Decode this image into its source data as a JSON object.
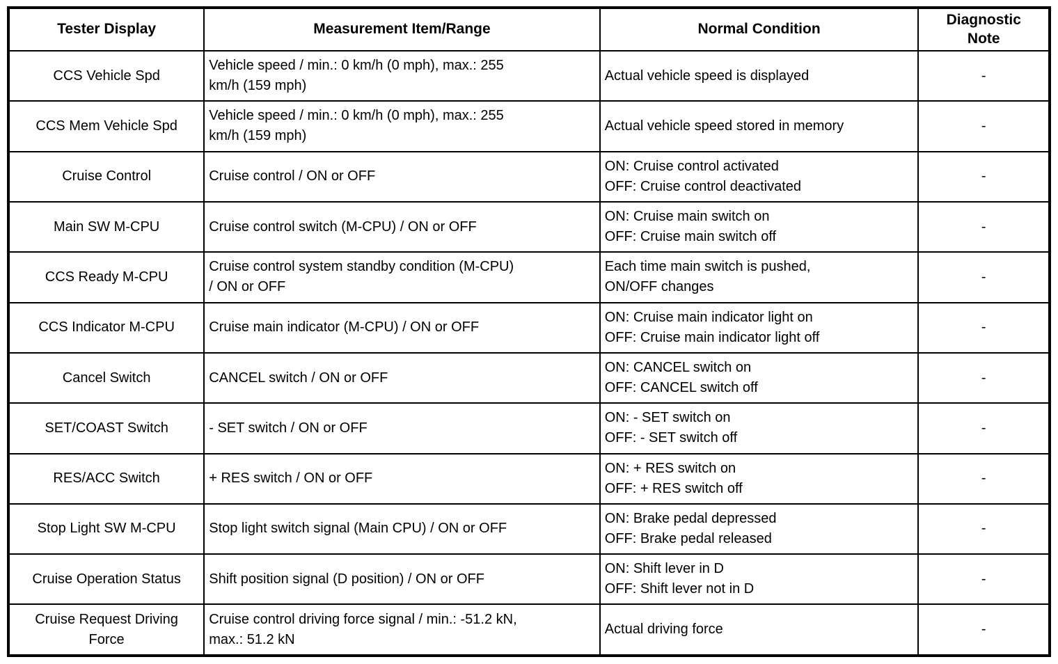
{
  "table": {
    "headers": [
      "Tester Display",
      "Measurement Item/Range",
      "Normal Condition",
      "Diagnostic\nNote"
    ],
    "rows": [
      {
        "tester": "CCS Vehicle Spd",
        "measurement": "Vehicle speed / min.: 0 km/h (0 mph), max.: 255\nkm/h (159 mph)",
        "normal": "Actual vehicle speed is displayed",
        "note": "-"
      },
      {
        "tester": "CCS Mem Vehicle Spd",
        "measurement": "Vehicle speed / min.: 0 km/h (0 mph), max.: 255\nkm/h (159 mph)",
        "normal": "Actual vehicle speed stored in memory",
        "note": "-"
      },
      {
        "tester": "Cruise Control",
        "measurement": "Cruise control / ON or OFF",
        "normal": "ON: Cruise control activated\nOFF: Cruise control deactivated",
        "note": "-"
      },
      {
        "tester": "Main SW M-CPU",
        "measurement": "Cruise control switch (M-CPU) / ON or OFF",
        "normal": "ON: Cruise main switch on\nOFF: Cruise main switch off",
        "note": "-"
      },
      {
        "tester": "CCS Ready M-CPU",
        "measurement": "Cruise control system standby condition (M-CPU)\n/ ON or OFF",
        "normal": "Each time main switch is pushed,\nON/OFF changes",
        "note": "-"
      },
      {
        "tester": "CCS Indicator M-CPU",
        "measurement": "Cruise main indicator (M-CPU) / ON or OFF",
        "normal": "ON: Cruise main indicator light on\nOFF: Cruise main indicator light off",
        "note": "-"
      },
      {
        "tester": "Cancel Switch",
        "measurement": "CANCEL switch / ON or OFF",
        "normal": "ON: CANCEL switch on\nOFF: CANCEL switch off",
        "note": "-"
      },
      {
        "tester": "SET/COAST Switch",
        "measurement": "- SET switch / ON or OFF",
        "normal": "ON: - SET switch on\nOFF: - SET switch off",
        "note": "-"
      },
      {
        "tester": "RES/ACC Switch",
        "measurement": "+ RES switch / ON or OFF",
        "normal": "ON: + RES switch on\nOFF: + RES switch off",
        "note": "-"
      },
      {
        "tester": "Stop Light SW M-CPU",
        "measurement": "Stop light switch signal (Main CPU) / ON or OFF",
        "normal": "ON: Brake pedal depressed\nOFF: Brake pedal released",
        "note": "-"
      },
      {
        "tester": "Cruise Operation Status",
        "measurement": "Shift position signal (D position) / ON or OFF",
        "normal": "ON: Shift lever in D\nOFF: Shift lever not in D",
        "note": "-"
      },
      {
        "tester": "Cruise Request Driving\nForce",
        "measurement": "Cruise control driving force signal / min.: -51.2 kN,\nmax.: 51.2 kN",
        "normal": "Actual driving force",
        "note": "-"
      }
    ]
  }
}
